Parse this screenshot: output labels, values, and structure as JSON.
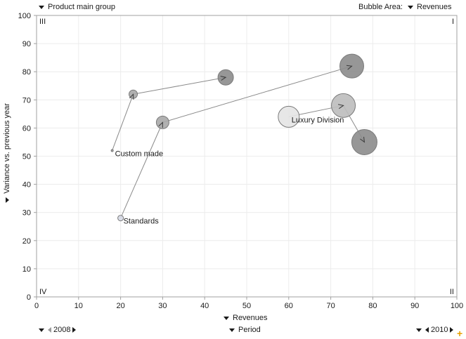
{
  "controls": {
    "color_by_label": "Product main group",
    "bubble_area_prefix": "Bubble Area:",
    "bubble_area_value": "Revenues",
    "x_axis_selector": "Revenues",
    "y_axis_selector": "Variance vs. previous year",
    "period_label": "Period",
    "period_start": "2008",
    "period_end": "2010"
  },
  "chart_data": {
    "type": "scatter",
    "title": "",
    "xlabel": "Revenues",
    "ylabel": "Variance vs. previous year",
    "xlim": [
      0,
      100
    ],
    "ylim": [
      0,
      100
    ],
    "x_ticks": [
      0,
      10,
      20,
      30,
      40,
      50,
      60,
      70,
      80,
      90,
      100
    ],
    "y_ticks": [
      0,
      10,
      20,
      30,
      40,
      50,
      60,
      70,
      80,
      90,
      100
    ],
    "grid": true,
    "quadrants": {
      "top_left": "III",
      "top_right": "I",
      "bottom_left": "IV",
      "bottom_right": "II"
    },
    "series": [
      {
        "name": "Custom made",
        "label_at": 0,
        "points": [
          {
            "x": 18,
            "y": 52,
            "size": 2,
            "color": "#a0a0a0"
          },
          {
            "x": 23,
            "y": 72,
            "size": 12,
            "color": "#a8a8a8"
          },
          {
            "x": 45,
            "y": 78,
            "size": 22,
            "color": "#8c8c8c"
          }
        ]
      },
      {
        "name": "Standards",
        "label_at": 0,
        "points": [
          {
            "x": 20,
            "y": 28,
            "size": 8,
            "color": "#d6d9e6"
          },
          {
            "x": 30,
            "y": 62,
            "size": 18,
            "color": "#a8a8a8"
          },
          {
            "x": 75,
            "y": 82,
            "size": 34,
            "color": "#8c8c8c"
          }
        ]
      },
      {
        "name": "Luxury Division",
        "label_at": 0,
        "points": [
          {
            "x": 60,
            "y": 64,
            "size": 30,
            "color": "#e4e4e4"
          },
          {
            "x": 73,
            "y": 68,
            "size": 34,
            "color": "#bdbdbd"
          },
          {
            "x": 78,
            "y": 55,
            "size": 36,
            "color": "#8c8c8c"
          }
        ]
      }
    ]
  }
}
